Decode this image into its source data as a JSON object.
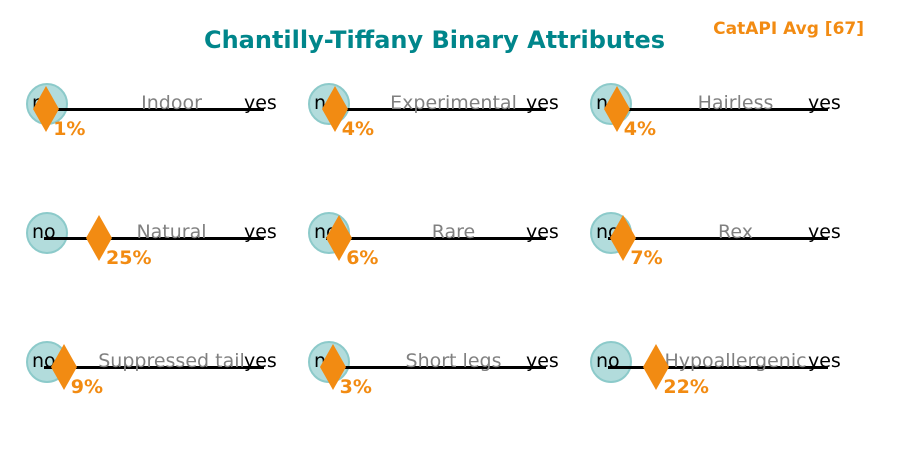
{
  "title": "Chantilly-Tiffany Binary Attributes",
  "catapi_avg_label": "CatAPI Avg [67]",
  "colors": {
    "title": "#00868b",
    "accent": "#f28b12",
    "circle_fill": "#b2dcdc",
    "attribute_label": "#808080"
  },
  "chart_data": {
    "type": "scatter",
    "title": "Chantilly-Tiffany Binary Attributes",
    "axis_ends": [
      "no",
      "yes"
    ],
    "xlim": [
      0,
      100
    ],
    "unit": "%",
    "marker": "diamond",
    "categories": [
      "Indoor",
      "Experimental",
      "Hairless",
      "Natural",
      "Rare",
      "Rex",
      "Suppressed tail",
      "Short legs",
      "Hypoallergenic"
    ],
    "values": [
      1,
      4,
      4,
      25,
      6,
      7,
      9,
      3,
      22
    ],
    "value_labels": [
      "1%",
      "4%",
      "4%",
      "25%",
      "6%",
      "7%",
      "9%",
      "3%",
      "22%"
    ]
  }
}
